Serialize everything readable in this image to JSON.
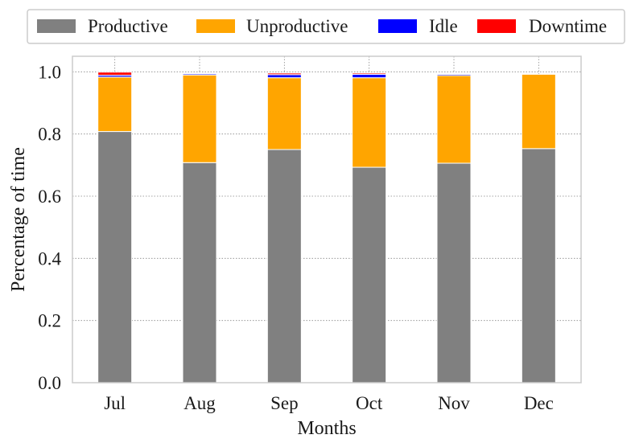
{
  "chart_data": {
    "type": "bar",
    "stacked": true,
    "title": "",
    "xlabel": "Months",
    "ylabel": "Percentage of time",
    "categories": [
      "Jul",
      "Aug",
      "Sep",
      "Oct",
      "Nov",
      "Dec"
    ],
    "ylim": [
      0,
      1.05
    ],
    "yticks": [
      0.0,
      0.2,
      0.4,
      0.6,
      0.8,
      1.0
    ],
    "ytick_labels": [
      "0.0",
      "0.2",
      "0.4",
      "0.6",
      "0.8",
      "1.0"
    ],
    "grid": true,
    "legend_position": "top",
    "series": [
      {
        "name": "Productive",
        "color": "#808080",
        "values": [
          0.808,
          0.708,
          0.75,
          0.693,
          0.706,
          0.753
        ]
      },
      {
        "name": "Unproductive",
        "color": "#FFA500",
        "values": [
          0.175,
          0.282,
          0.231,
          0.288,
          0.282,
          0.239
        ]
      },
      {
        "name": "Idle",
        "color": "#0000FF",
        "values": [
          0.006,
          0.004,
          0.01,
          0.011,
          0.004,
          0.0
        ]
      },
      {
        "name": "Downtime",
        "color": "#FF0000",
        "values": [
          0.01,
          0.002,
          0.005,
          0.004,
          0.002,
          0.0
        ]
      }
    ]
  }
}
